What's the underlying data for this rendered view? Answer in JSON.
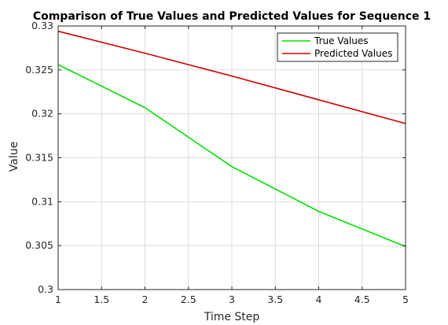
{
  "chart_data": {
    "type": "line",
    "title": "Comparison of True Values and Predicted Values for Sequence 1",
    "xlabel": "Time Step",
    "ylabel": "Value",
    "xlim": [
      1,
      5
    ],
    "ylim": [
      0.3,
      0.33
    ],
    "xticks": [
      1,
      1.5,
      2,
      2.5,
      3,
      3.5,
      4,
      4.5,
      5
    ],
    "xtick_labels": [
      "1",
      "1.5",
      "2",
      "2.5",
      "3",
      "3.5",
      "4",
      "4.5",
      "5"
    ],
    "yticks": [
      0.3,
      0.305,
      0.31,
      0.315,
      0.32,
      0.325,
      0.33
    ],
    "ytick_labels": [
      "0.3",
      "0.305",
      "0.31",
      "0.315",
      "0.32",
      "0.325",
      "0.33"
    ],
    "grid": true,
    "legend_position": "top-right",
    "x": [
      1,
      2,
      3,
      4,
      5
    ],
    "series": [
      {
        "name": "True Values",
        "color": "#00e000",
        "values": [
          0.3256,
          0.3207,
          0.314,
          0.3089,
          0.3049
        ]
      },
      {
        "name": "Predicted Values",
        "color": "#d00000",
        "values": [
          0.3294,
          0.3269,
          0.3243,
          0.3216,
          0.3189
        ]
      }
    ]
  }
}
